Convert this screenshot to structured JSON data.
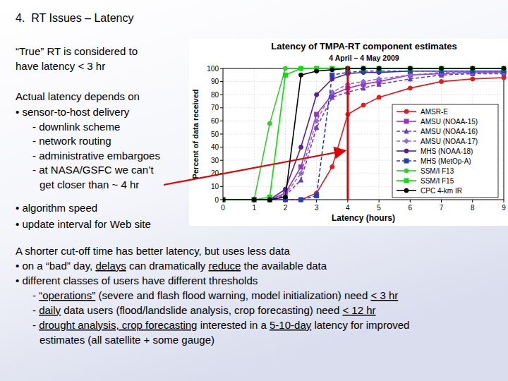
{
  "slide": {
    "heading": "4.  RT Issues – Latency",
    "intro": [
      "“True” RT is considered to",
      "have latency < 3 hr"
    ],
    "depends_title": "Actual latency depends on",
    "depends_lines": [
      [
        "• sensor-to-host delivery"
      ],
      [
        "- downlink scheme"
      ],
      [
        "- network routing"
      ],
      [
        "- administrative embargoes"
      ],
      [
        "- at NASA/GSFC we can’t"
      ],
      [
        "get closer than ~ 4 hr"
      ],
      [
        "• algorithm speed"
      ],
      [
        "• update interval for Web site"
      ]
    ],
    "cutoff_title": "A shorter cut-off time has better latency, but uses less data",
    "cutoff_lines": [
      [
        "• on a “bad” day, ",
        {
          "text": "delays",
          "underline": true
        },
        " can dramatically ",
        {
          "text": "reduce",
          "underline": true
        },
        " the available data"
      ],
      [
        "• different classes of users have different thresholds"
      ],
      [
        "- ",
        {
          "text": "“operations”",
          "underline": true
        },
        " (severe and flash flood warning, model initialization) need ",
        {
          "text": "< 3 hr",
          "underline": true
        }
      ],
      [
        "- ",
        {
          "text": "daily",
          "underline": true
        },
        " data users (flood/landslide analysis, crop forecasting) need ",
        {
          "text": "< 12 hr",
          "underline": true
        }
      ],
      [
        "- ",
        {
          "text": "drought analysis, crop forecasting",
          "underline": true
        },
        " interested in a ",
        {
          "text": "5-10-day",
          "underline": true
        },
        " latency for improved"
      ],
      [
        "estimates (all satellite + some gauge)"
      ]
    ]
  },
  "chart_data": {
    "type": "line",
    "title": "Latency of TMPA-RT component estimates",
    "subtitle": "4 April – 4 May 2009",
    "x_label": "Latency (hours)",
    "y_label": "Percent of data received",
    "x": [
      0,
      1,
      1.5,
      2,
      2.5,
      3,
      3.5,
      4,
      4.5,
      5,
      6,
      7,
      8,
      9
    ],
    "xlim": [
      0,
      9
    ],
    "xticks": [
      0,
      1,
      2,
      3,
      4,
      5,
      6,
      7,
      8,
      9
    ],
    "ylim": [
      0,
      100
    ],
    "yticks": [
      0,
      10,
      20,
      30,
      40,
      50,
      60,
      70,
      80,
      90,
      100
    ],
    "grid": true,
    "legend": "lower-right",
    "reference_x": 4,
    "series": [
      {
        "name": "AMSR-E",
        "color": "#e41a1c",
        "marker": "circle",
        "line_style": "solid",
        "values": [
          0,
          0,
          0,
          0,
          0,
          5,
          25,
          65,
          72,
          78,
          85,
          90,
          92,
          93
        ]
      },
      {
        "name": "AMSU (NOAA-15)",
        "color": "#9933cc",
        "marker": "square",
        "line_style": "solid",
        "values": [
          0,
          0,
          0,
          5,
          25,
          65,
          80,
          85,
          88,
          90,
          95,
          96,
          97,
          97
        ]
      },
      {
        "name": "AMSU (NOAA-16)",
        "color": "#6a3dcc",
        "marker": "triangle",
        "line_style": "dashed",
        "values": [
          0,
          0,
          0,
          3,
          15,
          55,
          78,
          82,
          85,
          88,
          92,
          95,
          96,
          96
        ]
      },
      {
        "name": "AMSU (NOAA-17)",
        "color": "#8c6bd9",
        "marker": "diamond",
        "line_style": "dashed",
        "values": [
          0,
          0,
          0,
          4,
          20,
          60,
          82,
          88,
          90,
          92,
          95,
          97,
          97,
          97
        ]
      },
      {
        "name": "MHS (NOAA-18)",
        "color": "#5b1f9e",
        "marker": "circle",
        "line_style": "solid",
        "values": [
          0,
          0,
          0,
          8,
          40,
          80,
          92,
          96,
          97,
          97,
          98,
          98,
          98,
          98
        ]
      },
      {
        "name": "MHS (MetOp-A)",
        "color": "#1f3fbf",
        "marker": "square",
        "line_style": "dashed",
        "values": [
          0,
          0,
          0,
          0,
          0,
          3,
          95,
          97,
          98,
          98,
          98,
          98,
          98,
          98
        ]
      },
      {
        "name": "SSM/I F13",
        "color": "#33cc33",
        "marker": "circle",
        "line_style": "solid",
        "values": [
          0,
          0,
          58,
          100,
          100,
          100,
          100,
          100,
          100,
          100,
          100,
          100,
          100,
          100
        ]
      },
      {
        "name": "SSM/I F15",
        "color": "#00e600",
        "marker": "square",
        "line_style": "solid",
        "values": [
          0,
          0,
          2,
          95,
          100,
          100,
          100,
          100,
          100,
          100,
          100,
          100,
          100,
          100
        ]
      },
      {
        "name": "CPC 4-km IR",
        "color": "#000000",
        "marker": "circle",
        "line_style": "solid",
        "values": [
          0,
          0,
          0,
          2,
          95,
          98,
          99,
          100,
          100,
          100,
          100,
          100,
          100,
          100
        ]
      }
    ]
  }
}
